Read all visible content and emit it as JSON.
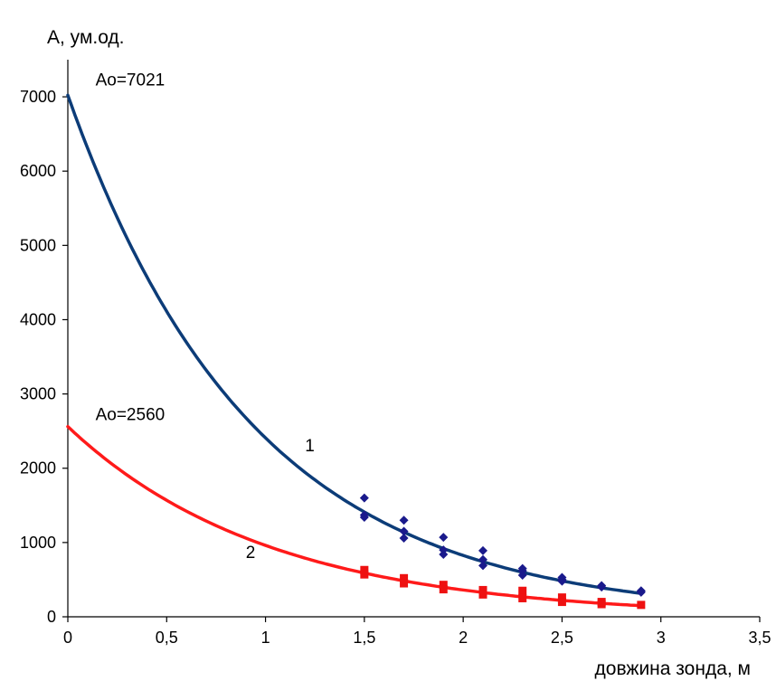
{
  "chart_data": {
    "type": "line",
    "title": "",
    "ylabel": "А, ум.од.",
    "xlabel": "довжина зонда, м",
    "xlim": [
      0,
      3.5
    ],
    "ylim": [
      0,
      7500
    ],
    "x_ticks": [
      0,
      0.5,
      1,
      1.5,
      2,
      2.5,
      3,
      3.5
    ],
    "x_tick_labels": [
      "0",
      "0,5",
      "1",
      "1,5",
      "2",
      "2,5",
      "3",
      "3,5"
    ],
    "y_ticks": [
      0,
      1000,
      2000,
      3000,
      4000,
      5000,
      6000,
      7000
    ],
    "y_tick_labels": [
      "0",
      "1000",
      "2000",
      "3000",
      "4000",
      "5000",
      "6000",
      "7000"
    ],
    "grid": false,
    "series": [
      {
        "name": "1",
        "color": "#0c3c78",
        "marker": "diamond",
        "marker_color": "#1a1a8c",
        "fit": {
          "a0": 7021,
          "k": 1.07,
          "x_max": 2.9
        },
        "points": [
          {
            "x": 1.5,
            "y": 1600
          },
          {
            "x": 1.5,
            "y": 1370
          },
          {
            "x": 1.5,
            "y": 1340
          },
          {
            "x": 1.7,
            "y": 1300
          },
          {
            "x": 1.7,
            "y": 1150
          },
          {
            "x": 1.7,
            "y": 1060
          },
          {
            "x": 1.9,
            "y": 1070
          },
          {
            "x": 1.9,
            "y": 900
          },
          {
            "x": 1.9,
            "y": 840
          },
          {
            "x": 2.1,
            "y": 890
          },
          {
            "x": 2.1,
            "y": 770
          },
          {
            "x": 2.1,
            "y": 690
          },
          {
            "x": 2.3,
            "y": 650
          },
          {
            "x": 2.3,
            "y": 620
          },
          {
            "x": 2.3,
            "y": 560
          },
          {
            "x": 2.5,
            "y": 530
          },
          {
            "x": 2.5,
            "y": 500
          },
          {
            "x": 2.5,
            "y": 480
          },
          {
            "x": 2.7,
            "y": 420
          },
          {
            "x": 2.7,
            "y": 400
          },
          {
            "x": 2.9,
            "y": 350
          },
          {
            "x": 2.9,
            "y": 330
          }
        ]
      },
      {
        "name": "2",
        "color": "#ff1a1a",
        "marker": "square",
        "marker_color": "#ee1111",
        "fit": {
          "a0": 2560,
          "k": 0.98,
          "x_max": 2.9
        },
        "points": [
          {
            "x": 1.5,
            "y": 630
          },
          {
            "x": 1.5,
            "y": 570
          },
          {
            "x": 1.7,
            "y": 520
          },
          {
            "x": 1.7,
            "y": 450
          },
          {
            "x": 1.9,
            "y": 430
          },
          {
            "x": 1.9,
            "y": 370
          },
          {
            "x": 2.1,
            "y": 360
          },
          {
            "x": 2.1,
            "y": 300
          },
          {
            "x": 2.3,
            "y": 350
          },
          {
            "x": 2.3,
            "y": 250
          },
          {
            "x": 2.5,
            "y": 260
          },
          {
            "x": 2.5,
            "y": 200
          },
          {
            "x": 2.7,
            "y": 200
          },
          {
            "x": 2.7,
            "y": 170
          },
          {
            "x": 2.9,
            "y": 160
          }
        ]
      }
    ],
    "annotations": [
      {
        "text": "Ao=7021",
        "x": 0.14,
        "y": 7150
      },
      {
        "text": "Ao=2560",
        "x": 0.14,
        "y": 2650
      },
      {
        "text": "1",
        "x": 1.2,
        "y": 2230
      },
      {
        "text": "2",
        "x": 0.9,
        "y": 790
      }
    ]
  }
}
